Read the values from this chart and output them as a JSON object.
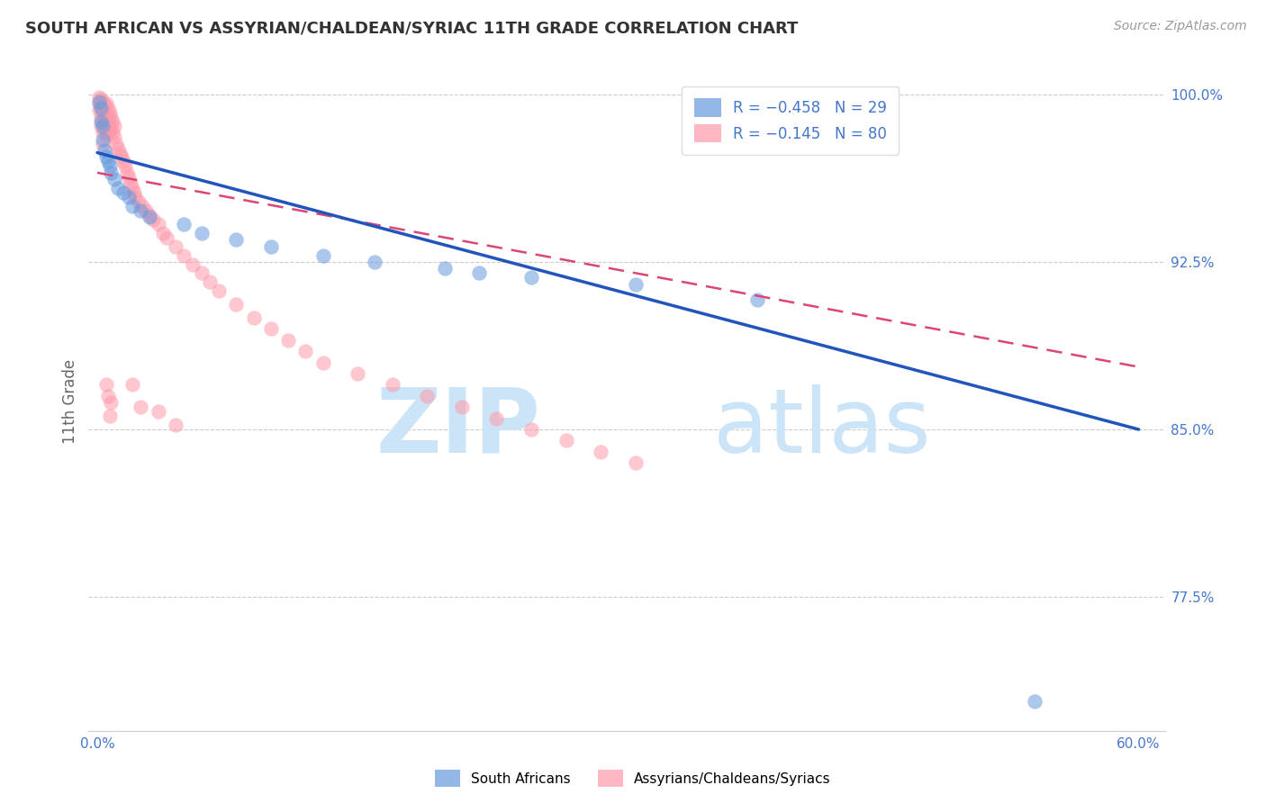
{
  "title": "SOUTH AFRICAN VS ASSYRIAN/CHALDEAN/SYRIAC 11TH GRADE CORRELATION CHART",
  "source": "Source: ZipAtlas.com",
  "ylabel": "11th Grade",
  "xlim": [
    -0.005,
    0.615
  ],
  "ylim": [
    0.715,
    1.01
  ],
  "xticks": [
    0.0,
    0.1,
    0.2,
    0.3,
    0.4,
    0.5,
    0.6
  ],
  "xticklabels": [
    "0.0%",
    "",
    "",
    "",
    "",
    "",
    "60.0%"
  ],
  "yticks_right": [
    1.0,
    0.925,
    0.85,
    0.775
  ],
  "ytick_right_labels": [
    "100.0%",
    "92.5%",
    "85.0%",
    "77.5%"
  ],
  "blue_color": "#6699dd",
  "pink_color": "#ff99aa",
  "blue_line": [
    0.0,
    0.974,
    0.6,
    0.85
  ],
  "pink_line": [
    0.0,
    0.965,
    0.6,
    0.878
  ],
  "blue_scatter_x": [
    0.001,
    0.002,
    0.002,
    0.003,
    0.003,
    0.004,
    0.005,
    0.006,
    0.007,
    0.008,
    0.01,
    0.012,
    0.015,
    0.018,
    0.02,
    0.025,
    0.03,
    0.05,
    0.06,
    0.08,
    0.1,
    0.13,
    0.16,
    0.2,
    0.22,
    0.25,
    0.31,
    0.38,
    0.54
  ],
  "blue_scatter_y": [
    0.997,
    0.994,
    0.988,
    0.986,
    0.98,
    0.975,
    0.972,
    0.97,
    0.968,
    0.965,
    0.962,
    0.958,
    0.956,
    0.954,
    0.95,
    0.948,
    0.945,
    0.942,
    0.938,
    0.935,
    0.932,
    0.928,
    0.925,
    0.922,
    0.92,
    0.918,
    0.915,
    0.908,
    0.728
  ],
  "pink_scatter_x": [
    0.001,
    0.001,
    0.001,
    0.002,
    0.002,
    0.002,
    0.002,
    0.003,
    0.003,
    0.003,
    0.003,
    0.003,
    0.004,
    0.004,
    0.004,
    0.005,
    0.005,
    0.005,
    0.005,
    0.006,
    0.006,
    0.006,
    0.007,
    0.007,
    0.007,
    0.008,
    0.008,
    0.009,
    0.009,
    0.01,
    0.01,
    0.011,
    0.012,
    0.013,
    0.014,
    0.015,
    0.016,
    0.017,
    0.018,
    0.019,
    0.02,
    0.021,
    0.022,
    0.024,
    0.026,
    0.028,
    0.03,
    0.032,
    0.035,
    0.038,
    0.04,
    0.045,
    0.05,
    0.055,
    0.06,
    0.065,
    0.07,
    0.08,
    0.09,
    0.1,
    0.11,
    0.12,
    0.13,
    0.15,
    0.17,
    0.19,
    0.21,
    0.23,
    0.25,
    0.27,
    0.29,
    0.31,
    0.02,
    0.025,
    0.035,
    0.045,
    0.005,
    0.006,
    0.007,
    0.008
  ],
  "pink_scatter_y": [
    0.999,
    0.996,
    0.993,
    0.998,
    0.994,
    0.99,
    0.986,
    0.997,
    0.992,
    0.988,
    0.983,
    0.978,
    0.995,
    0.989,
    0.984,
    0.996,
    0.991,
    0.987,
    0.982,
    0.994,
    0.989,
    0.984,
    0.992,
    0.988,
    0.983,
    0.99,
    0.985,
    0.988,
    0.983,
    0.986,
    0.981,
    0.978,
    0.976,
    0.974,
    0.972,
    0.97,
    0.968,
    0.965,
    0.963,
    0.96,
    0.958,
    0.956,
    0.954,
    0.952,
    0.95,
    0.948,
    0.946,
    0.944,
    0.942,
    0.938,
    0.936,
    0.932,
    0.928,
    0.924,
    0.92,
    0.916,
    0.912,
    0.906,
    0.9,
    0.895,
    0.89,
    0.885,
    0.88,
    0.875,
    0.87,
    0.865,
    0.86,
    0.855,
    0.85,
    0.845,
    0.84,
    0.835,
    0.87,
    0.86,
    0.858,
    0.852,
    0.87,
    0.865,
    0.856,
    0.862
  ]
}
